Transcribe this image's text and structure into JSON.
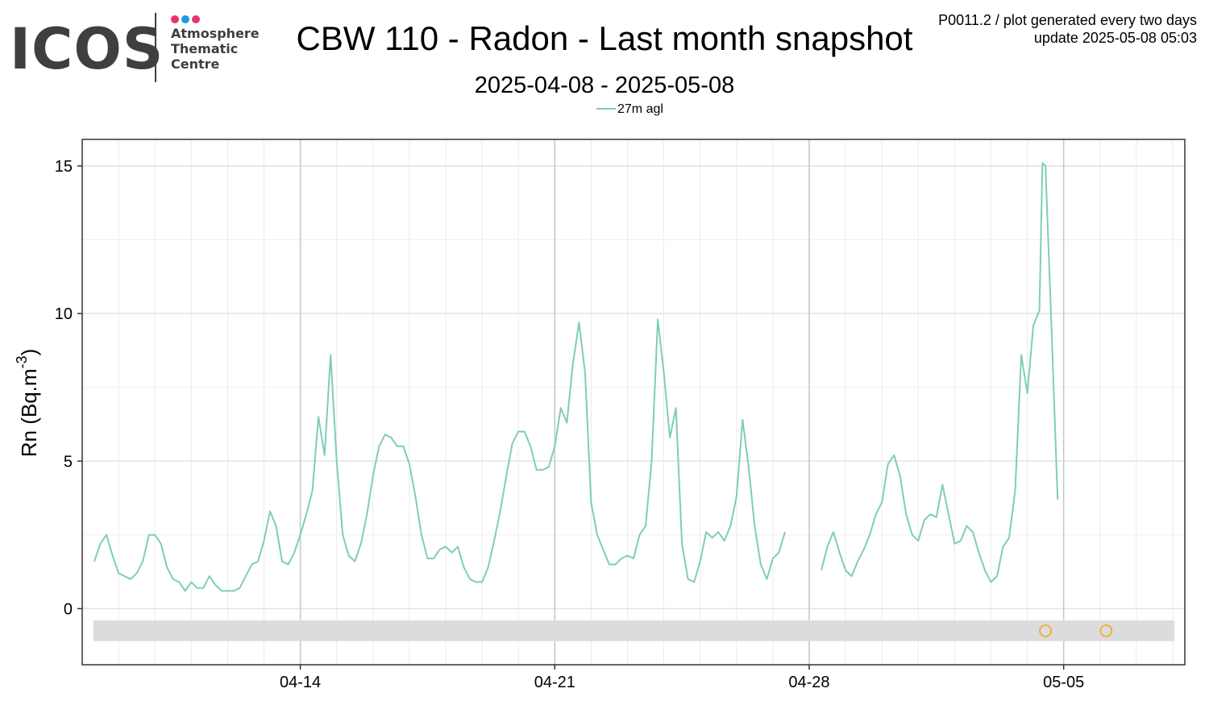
{
  "logo": {
    "wordmark": "ICOS",
    "lines": [
      "Atmosphere",
      "Thematic",
      "Centre"
    ],
    "dot_colors": [
      "#e8336d",
      "#1a9ce0",
      "#e8336d"
    ],
    "text_color": "#3f3f3f"
  },
  "header": {
    "title": "CBW 110 - Radon - Last month snapshot",
    "subtitle": "2025-04-08 - 2025-05-08",
    "meta_line1": "P0011.2 / plot generated every two days",
    "meta_line2": "update  2025-05-08 05:03"
  },
  "chart_data": {
    "type": "line",
    "title": "CBW 110 - Radon - Last month snapshot",
    "subtitle": "2025-04-08 - 2025-05-08",
    "xlabel": "",
    "ylabel": "Rn (Bq.m",
    "ylabel_superscript": "-3",
    "ylabel_close": ")",
    "xlim": [
      "2025-04-08T00:00",
      "2025-05-08T08:00"
    ],
    "ylim": [
      -1.9,
      15.9
    ],
    "x_ticks": [
      {
        "date": "2025-04-14",
        "label": "04-14"
      },
      {
        "date": "2025-04-21",
        "label": "04-21"
      },
      {
        "date": "2025-04-28",
        "label": "04-28"
      },
      {
        "date": "2025-05-05",
        "label": "05-05"
      }
    ],
    "y_ticks": [
      0,
      5,
      10,
      15
    ],
    "grid": true,
    "legend_position": "top-center",
    "series": [
      {
        "name": "27m agl",
        "color": "#7fcdbb",
        "points": [
          [
            "2025-04-08T08:00",
            1.6
          ],
          [
            "2025-04-08T12:00",
            2.2
          ],
          [
            "2025-04-08T16:00",
            2.5
          ],
          [
            "2025-04-08T20:00",
            1.8
          ],
          [
            "2025-04-09T00:00",
            1.2
          ],
          [
            "2025-04-09T04:00",
            1.1
          ],
          [
            "2025-04-09T08:00",
            1.0
          ],
          [
            "2025-04-09T12:00",
            1.2
          ],
          [
            "2025-04-09T16:00",
            1.6
          ],
          [
            "2025-04-09T20:00",
            2.5
          ],
          [
            "2025-04-10T00:00",
            2.5
          ],
          [
            "2025-04-10T04:00",
            2.2
          ],
          [
            "2025-04-10T08:00",
            1.4
          ],
          [
            "2025-04-10T12:00",
            1.0
          ],
          [
            "2025-04-10T16:00",
            0.9
          ],
          [
            "2025-04-10T20:00",
            0.6
          ],
          [
            "2025-04-11T00:00",
            0.9
          ],
          [
            "2025-04-11T04:00",
            0.7
          ],
          [
            "2025-04-11T08:00",
            0.7
          ],
          [
            "2025-04-11T12:00",
            1.1
          ],
          [
            "2025-04-11T16:00",
            0.8
          ],
          [
            "2025-04-11T20:00",
            0.6
          ],
          [
            "2025-04-12T00:00",
            0.6
          ],
          [
            "2025-04-12T04:00",
            0.6
          ],
          [
            "2025-04-12T08:00",
            0.7
          ],
          [
            "2025-04-12T12:00",
            1.1
          ],
          [
            "2025-04-12T16:00",
            1.5
          ],
          [
            "2025-04-12T20:00",
            1.6
          ],
          [
            "2025-04-13T00:00",
            2.3
          ],
          [
            "2025-04-13T04:00",
            3.3
          ],
          [
            "2025-04-13T08:00",
            2.8
          ],
          [
            "2025-04-13T12:00",
            1.6
          ],
          [
            "2025-04-13T16:00",
            1.5
          ],
          [
            "2025-04-13T20:00",
            1.9
          ],
          [
            "2025-04-14T00:00",
            2.5
          ],
          [
            "2025-04-14T04:00",
            3.2
          ],
          [
            "2025-04-14T08:00",
            4.0
          ],
          [
            "2025-04-14T12:00",
            6.5
          ],
          [
            "2025-04-14T16:00",
            5.2
          ],
          [
            "2025-04-14T20:00",
            8.6
          ],
          [
            "2025-04-15T00:00",
            5.0
          ],
          [
            "2025-04-15T04:00",
            2.5
          ],
          [
            "2025-04-15T08:00",
            1.8
          ],
          [
            "2025-04-15T12:00",
            1.6
          ],
          [
            "2025-04-15T16:00",
            2.2
          ],
          [
            "2025-04-15T20:00",
            3.2
          ],
          [
            "2025-04-16T00:00",
            4.5
          ],
          [
            "2025-04-16T04:00",
            5.5
          ],
          [
            "2025-04-16T08:00",
            5.9
          ],
          [
            "2025-04-16T12:00",
            5.8
          ],
          [
            "2025-04-16T16:00",
            5.5
          ],
          [
            "2025-04-16T20:00",
            5.5
          ],
          [
            "2025-04-17T00:00",
            4.9
          ],
          [
            "2025-04-17T04:00",
            3.8
          ],
          [
            "2025-04-17T08:00",
            2.5
          ],
          [
            "2025-04-17T12:00",
            1.7
          ],
          [
            "2025-04-17T16:00",
            1.7
          ],
          [
            "2025-04-17T20:00",
            2.0
          ],
          [
            "2025-04-18T00:00",
            2.1
          ],
          [
            "2025-04-18T04:00",
            1.9
          ],
          [
            "2025-04-18T08:00",
            2.1
          ],
          [
            "2025-04-18T12:00",
            1.4
          ],
          [
            "2025-04-18T16:00",
            1.0
          ],
          [
            "2025-04-18T20:00",
            0.9
          ],
          [
            "2025-04-19T00:00",
            0.9
          ],
          [
            "2025-04-19T04:00",
            1.4
          ],
          [
            "2025-04-19T08:00",
            2.3
          ],
          [
            "2025-04-19T12:00",
            3.3
          ],
          [
            "2025-04-19T16:00",
            4.5
          ],
          [
            "2025-04-19T20:00",
            5.6
          ],
          [
            "2025-04-20T00:00",
            6.0
          ],
          [
            "2025-04-20T04:00",
            6.0
          ],
          [
            "2025-04-20T08:00",
            5.5
          ],
          [
            "2025-04-20T12:00",
            4.7
          ],
          [
            "2025-04-20T16:00",
            4.7
          ],
          [
            "2025-04-20T20:00",
            4.8
          ],
          [
            "2025-04-21T00:00",
            5.5
          ],
          [
            "2025-04-21T04:00",
            6.8
          ],
          [
            "2025-04-21T08:00",
            6.3
          ],
          [
            "2025-04-21T12:00",
            8.3
          ],
          [
            "2025-04-21T16:00",
            9.7
          ],
          [
            "2025-04-21T20:00",
            8.0
          ],
          [
            "2025-04-22T00:00",
            3.6
          ],
          [
            "2025-04-22T04:00",
            2.5
          ],
          [
            "2025-04-22T08:00",
            2.0
          ],
          [
            "2025-04-22T12:00",
            1.5
          ],
          [
            "2025-04-22T16:00",
            1.5
          ],
          [
            "2025-04-22T20:00",
            1.7
          ],
          [
            "2025-04-23T00:00",
            1.8
          ],
          [
            "2025-04-23T04:00",
            1.7
          ],
          [
            "2025-04-23T08:00",
            2.5
          ],
          [
            "2025-04-23T12:00",
            2.8
          ],
          [
            "2025-04-23T16:00",
            5.0
          ],
          [
            "2025-04-23T20:00",
            9.8
          ],
          [
            "2025-04-24T00:00",
            8.0
          ],
          [
            "2025-04-24T04:00",
            5.8
          ],
          [
            "2025-04-24T08:00",
            6.8
          ],
          [
            "2025-04-24T12:00",
            2.2
          ],
          [
            "2025-04-24T16:00",
            1.0
          ],
          [
            "2025-04-24T20:00",
            0.9
          ],
          [
            "2025-04-25T00:00",
            1.6
          ],
          [
            "2025-04-25T04:00",
            2.6
          ],
          [
            "2025-04-25T08:00",
            2.4
          ],
          [
            "2025-04-25T12:00",
            2.6
          ],
          [
            "2025-04-25T16:00",
            2.3
          ],
          [
            "2025-04-25T20:00",
            2.8
          ],
          [
            "2025-04-26T00:00",
            3.8
          ],
          [
            "2025-04-26T04:00",
            6.4
          ],
          [
            "2025-04-26T08:00",
            4.8
          ],
          [
            "2025-04-26T12:00",
            2.8
          ],
          [
            "2025-04-26T16:00",
            1.5
          ],
          [
            "2025-04-26T20:00",
            1.0
          ],
          [
            "2025-04-27T00:00",
            1.7
          ],
          [
            "2025-04-27T04:00",
            1.9
          ],
          [
            "2025-04-27T08:00",
            2.6
          ],
          null,
          [
            "2025-04-28T08:00",
            1.3
          ],
          [
            "2025-04-28T12:00",
            2.1
          ],
          [
            "2025-04-28T16:00",
            2.6
          ],
          [
            "2025-04-28T20:00",
            1.9
          ],
          [
            "2025-04-29T00:00",
            1.3
          ],
          [
            "2025-04-29T04:00",
            1.1
          ],
          [
            "2025-04-29T08:00",
            1.6
          ],
          [
            "2025-04-29T12:00",
            2.0
          ],
          [
            "2025-04-29T16:00",
            2.5
          ],
          [
            "2025-04-29T20:00",
            3.2
          ],
          [
            "2025-04-30T00:00",
            3.6
          ],
          [
            "2025-04-30T04:00",
            4.9
          ],
          [
            "2025-04-30T08:00",
            5.2
          ],
          [
            "2025-04-30T12:00",
            4.5
          ],
          [
            "2025-04-30T16:00",
            3.2
          ],
          [
            "2025-04-30T20:00",
            2.5
          ],
          [
            "2025-05-01T00:00",
            2.3
          ],
          [
            "2025-05-01T04:00",
            3.0
          ],
          [
            "2025-05-01T08:00",
            3.2
          ],
          [
            "2025-05-01T12:00",
            3.1
          ],
          [
            "2025-05-01T16:00",
            4.2
          ],
          [
            "2025-05-01T20:00",
            3.2
          ],
          [
            "2025-05-02T00:00",
            2.2
          ],
          [
            "2025-05-02T04:00",
            2.3
          ],
          [
            "2025-05-02T08:00",
            2.8
          ],
          [
            "2025-05-02T12:00",
            2.6
          ],
          [
            "2025-05-02T16:00",
            1.9
          ],
          [
            "2025-05-02T20:00",
            1.3
          ],
          [
            "2025-05-03T00:00",
            0.9
          ],
          [
            "2025-05-03T04:00",
            1.1
          ],
          [
            "2025-05-03T08:00",
            2.1
          ],
          [
            "2025-05-03T12:00",
            2.4
          ],
          [
            "2025-05-03T16:00",
            4.0
          ],
          [
            "2025-05-03T20:00",
            8.6
          ],
          [
            "2025-05-04T00:00",
            7.3
          ],
          [
            "2025-05-04T04:00",
            9.6
          ],
          [
            "2025-05-04T08:00",
            10.1
          ],
          [
            "2025-05-04T10:00",
            15.1
          ],
          [
            "2025-05-04T12:00",
            15.0
          ],
          [
            "2025-05-04T16:00",
            9.5
          ],
          [
            "2025-05-04T20:00",
            3.7
          ]
        ],
        "gap_note": ""
      }
    ],
    "flag_band": {
      "y_from": -1.1,
      "y_to": -0.4,
      "color": "#dcdcdc"
    },
    "flag_markers": {
      "color": "#f5a623",
      "y": -0.75,
      "x": [
        "2025-05-04T12:00",
        "2025-05-06T04:00"
      ]
    }
  }
}
